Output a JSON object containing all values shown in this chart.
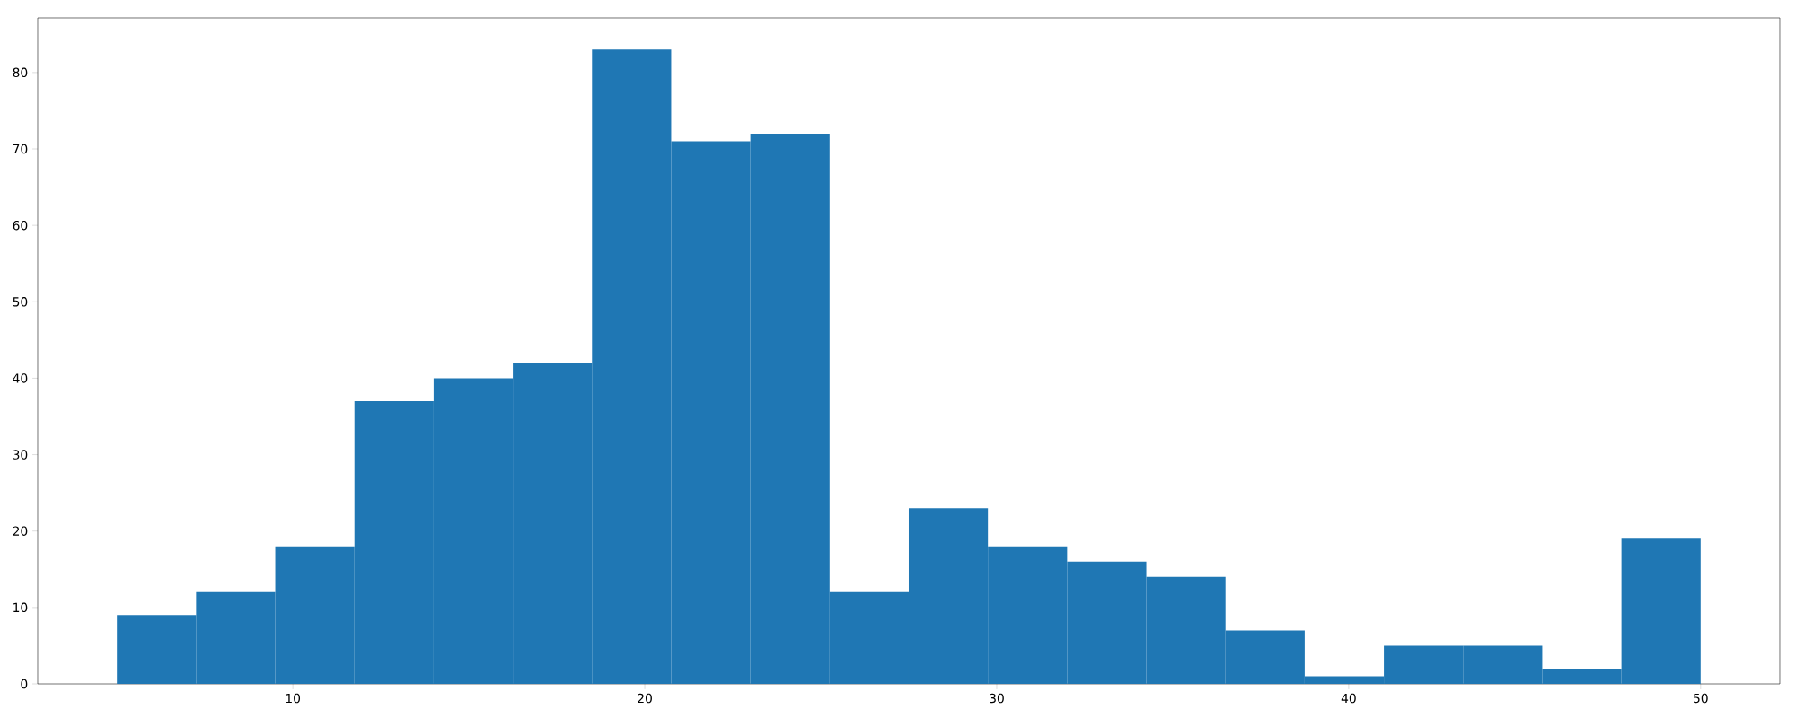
{
  "chart_data": {
    "type": "histogram",
    "bins": [
      5,
      7.25,
      9.5,
      11.75,
      14,
      16.25,
      18.5,
      20.75,
      23,
      25.25,
      27.5,
      29.75,
      32,
      34.25,
      36.5,
      38.75,
      41,
      43.25,
      45.5,
      47.75,
      50
    ],
    "values": [
      9,
      12,
      18,
      37,
      40,
      42,
      83,
      71,
      72,
      12,
      23,
      18,
      16,
      14,
      7,
      1,
      5,
      5,
      2,
      19
    ],
    "color": "#1f77b4",
    "xlim": [
      2.75,
      52.25
    ],
    "ylim": [
      0,
      87.15
    ],
    "xticks": [
      10,
      20,
      30,
      40,
      50
    ],
    "yticks": [
      0,
      10,
      20,
      30,
      40,
      50,
      60,
      70,
      80
    ],
    "grid": false
  }
}
